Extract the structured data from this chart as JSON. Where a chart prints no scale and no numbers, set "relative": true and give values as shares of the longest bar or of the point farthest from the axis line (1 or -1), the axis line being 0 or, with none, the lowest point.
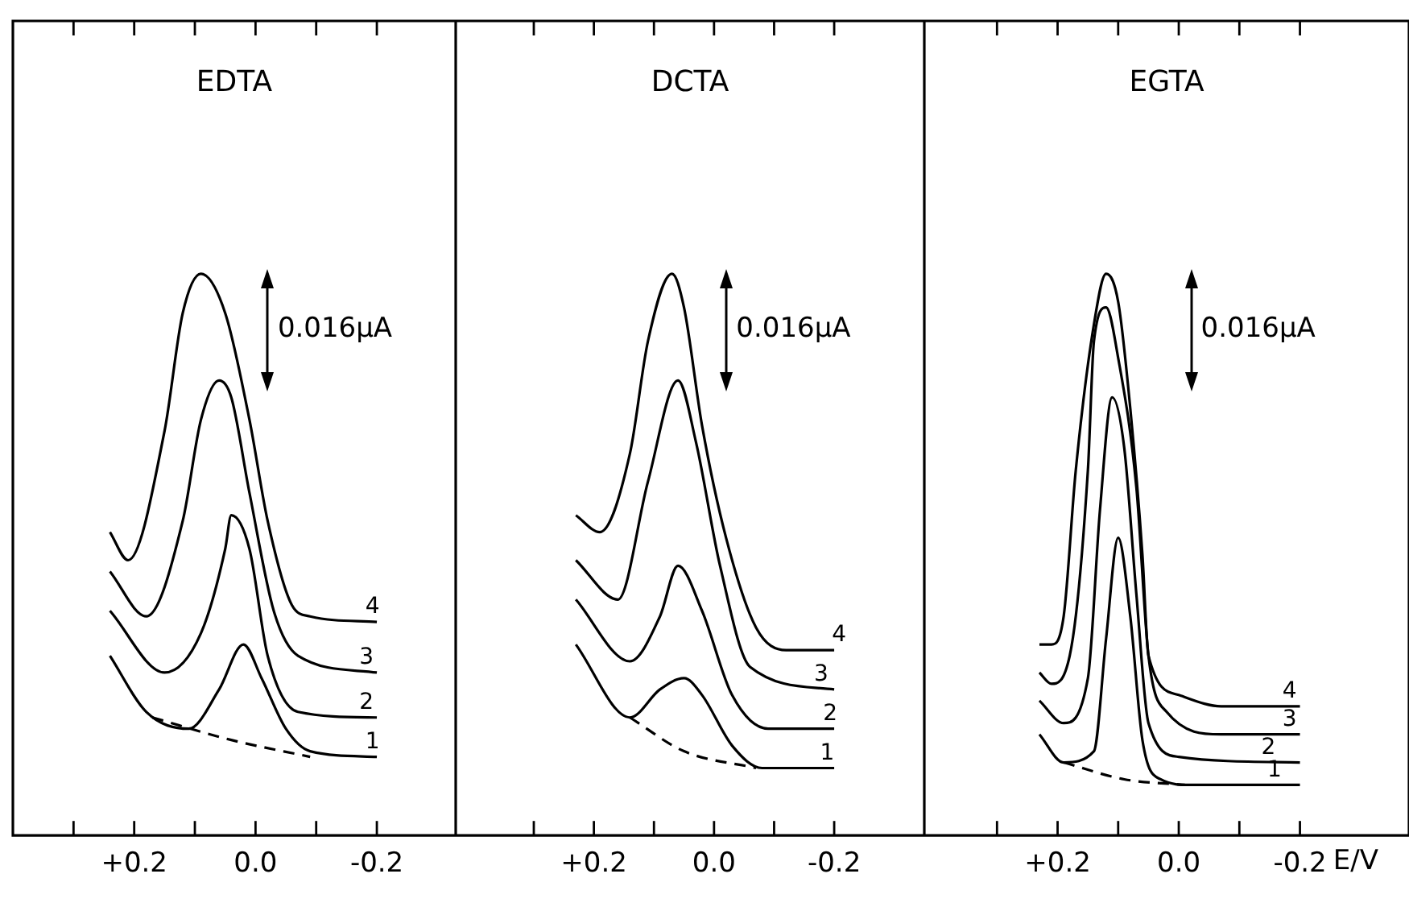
{
  "chart_data": [
    {
      "type": "line",
      "title": "EDTA",
      "relative": true,
      "xlim": [
        0.4,
        -0.33
      ],
      "xticks": [
        {
          "value": 0.3,
          "label": null
        },
        {
          "value": 0.2,
          "label": "+0.2"
        },
        {
          "value": 0.1,
          "label": null
        },
        {
          "value": 0,
          "label": "0.0"
        },
        {
          "value": -0.1,
          "label": null
        },
        {
          "value": -0.2,
          "label": "-0.2"
        }
      ],
      "annotations": [
        "0.016µA"
      ],
      "series": [
        {
          "name": "1",
          "color": "#000000",
          "x": [
            0.24,
            0.18,
            0.11,
            0.06,
            0.02,
            -0.01,
            -0.05,
            -0.09,
            -0.2
          ],
          "values": [
            0.32,
            0.22,
            0.19,
            0.26,
            0.34,
            0.28,
            0.19,
            0.15,
            0.14
          ]
        },
        {
          "name": "2",
          "color": "#000000",
          "x": [
            0.24,
            0.15,
            0.09,
            0.05,
            0.04,
            0.01,
            -0.02,
            -0.07,
            -0.2
          ],
          "values": [
            0.4,
            0.29,
            0.36,
            0.51,
            0.57,
            0.51,
            0.32,
            0.22,
            0.21
          ]
        },
        {
          "name": "3",
          "color": "#000000",
          "x": [
            0.24,
            0.18,
            0.12,
            0.09,
            0.06,
            0.04,
            0.01,
            -0.03,
            -0.07,
            -0.2
          ],
          "values": [
            0.47,
            0.39,
            0.56,
            0.74,
            0.81,
            0.78,
            0.61,
            0.4,
            0.32,
            0.29
          ]
        },
        {
          "name": "4",
          "color": "#000000",
          "x": [
            0.24,
            0.21,
            0.15,
            0.12,
            0.09,
            0.05,
            0.01,
            -0.02,
            -0.06,
            -0.09,
            -0.2
          ],
          "values": [
            0.54,
            0.49,
            0.72,
            0.93,
            1.0,
            0.93,
            0.74,
            0.56,
            0.41,
            0.39,
            0.38
          ]
        },
        {
          "color": "#000000",
          "line_style": "dashed",
          "x": [
            0.17,
            0.04,
            -0.09
          ],
          "values": [
            0.21,
            0.17,
            0.14
          ]
        }
      ]
    },
    {
      "type": "line",
      "title": "DCTA",
      "relative": true,
      "xlim": [
        0.43,
        -0.35
      ],
      "xticks": [
        {
          "value": 0.3,
          "label": null
        },
        {
          "value": 0.2,
          "label": "+0.2"
        },
        {
          "value": 0.1,
          "label": null
        },
        {
          "value": 0,
          "label": "0.0"
        },
        {
          "value": -0.1,
          "label": null
        },
        {
          "value": -0.2,
          "label": "-0.2"
        }
      ],
      "annotations": [
        "0.016µA"
      ],
      "series": [
        {
          "name": "1",
          "color": "#000000",
          "x": [
            0.23,
            0.14,
            0.09,
            0.05,
            0.02,
            -0.03,
            -0.08,
            -0.2
          ],
          "values": [
            0.34,
            0.21,
            0.26,
            0.28,
            0.25,
            0.16,
            0.12,
            0.12
          ]
        },
        {
          "name": "2",
          "color": "#000000",
          "x": [
            0.23,
            0.14,
            0.09,
            0.06,
            0.02,
            -0.03,
            -0.09,
            -0.2
          ],
          "values": [
            0.42,
            0.31,
            0.39,
            0.48,
            0.4,
            0.25,
            0.19,
            0.19
          ]
        },
        {
          "name": "3",
          "color": "#000000",
          "x": [
            0.23,
            0.16,
            0.11,
            0.06,
            0.03,
            -0.01,
            -0.06,
            -0.2
          ],
          "values": [
            0.49,
            0.42,
            0.63,
            0.81,
            0.7,
            0.48,
            0.3,
            0.26
          ]
        },
        {
          "name": "4",
          "color": "#000000",
          "x": [
            0.23,
            0.19,
            0.14,
            0.11,
            0.07,
            0.05,
            0.02,
            -0.02,
            -0.07,
            -0.12,
            -0.2
          ],
          "values": [
            0.57,
            0.54,
            0.68,
            0.88,
            1.0,
            0.94,
            0.73,
            0.53,
            0.37,
            0.33,
            0.33
          ]
        },
        {
          "color": "#000000",
          "line_style": "dashed",
          "x": [
            0.14,
            0.05,
            -0.07
          ],
          "values": [
            0.21,
            0.15,
            0.12
          ]
        }
      ]
    },
    {
      "type": "line",
      "title": "EGTA",
      "xlabel": "E/V",
      "relative": true,
      "xlim": [
        0.42,
        -0.38
      ],
      "xticks": [
        {
          "value": 0.3,
          "label": null
        },
        {
          "value": 0.2,
          "label": "+0.2"
        },
        {
          "value": 0.1,
          "label": null
        },
        {
          "value": 0,
          "label": "0.0"
        },
        {
          "value": -0.1,
          "label": null
        },
        {
          "value": -0.2,
          "label": "-0.2"
        }
      ],
      "annotations": [
        "0.016µA"
      ],
      "series": [
        {
          "name": "1",
          "color": "#000000",
          "x": [
            0.23,
            0.19,
            0.14,
            0.12,
            0.1,
            0.08,
            0.06,
            0.03,
            -0.02,
            -0.2
          ],
          "values": [
            0.18,
            0.13,
            0.15,
            0.35,
            0.53,
            0.39,
            0.17,
            0.1,
            0.09,
            0.09
          ]
        },
        {
          "name": "2",
          "color": "#000000",
          "x": [
            0.23,
            0.19,
            0.15,
            0.13,
            0.11,
            0.09,
            0.07,
            0.05,
            0.0,
            -0.2
          ],
          "values": [
            0.24,
            0.2,
            0.28,
            0.58,
            0.78,
            0.69,
            0.43,
            0.2,
            0.14,
            0.13
          ]
        },
        {
          "name": "3",
          "color": "#000000",
          "x": [
            0.23,
            0.21,
            0.18,
            0.15,
            0.14,
            0.12,
            0.1,
            0.07,
            0.05,
            0.02,
            -0.07,
            -0.2
          ],
          "values": [
            0.29,
            0.27,
            0.32,
            0.65,
            0.88,
            0.94,
            0.85,
            0.62,
            0.32,
            0.22,
            0.18,
            0.18
          ]
        },
        {
          "name": "4",
          "color": "#000000",
          "x": [
            0.23,
            0.21,
            0.19,
            0.17,
            0.14,
            0.12,
            0.1,
            0.08,
            0.06,
            0.05,
            0.0,
            -0.07,
            -0.2
          ],
          "values": [
            0.34,
            0.34,
            0.39,
            0.65,
            0.91,
            1.0,
            0.95,
            0.76,
            0.5,
            0.32,
            0.25,
            0.23,
            0.23
          ]
        },
        {
          "color": "#000000",
          "line_style": "dashed",
          "x": [
            0.19,
            0.09,
            -0.01
          ],
          "values": [
            0.13,
            0.1,
            0.09
          ]
        }
      ]
    }
  ]
}
